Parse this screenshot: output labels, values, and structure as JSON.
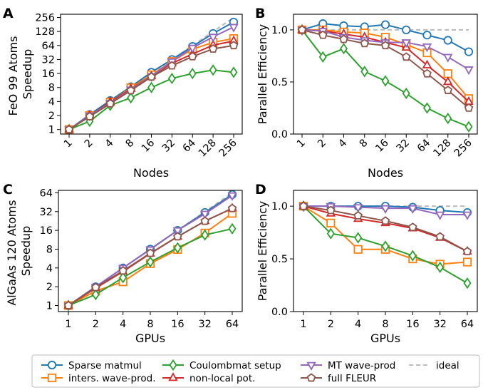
{
  "legend": {
    "entries": [
      {
        "key": "sparse",
        "label": "Sparse matmul"
      },
      {
        "key": "inters",
        "label": "inters. wave-prod."
      },
      {
        "key": "coul",
        "label": "Coulombmat setup"
      },
      {
        "key": "nonloc",
        "label": "non-local pot."
      },
      {
        "key": "mt",
        "label": "MT wave-prod"
      },
      {
        "key": "fleur",
        "label": "full FLEUR"
      },
      {
        "key": "ideal",
        "label": "ideal"
      }
    ]
  },
  "series_styles": {
    "sparse": {
      "color": "#1f77b4",
      "marker": "circle"
    },
    "inters": {
      "color": "#ff7f0e",
      "marker": "square"
    },
    "coul": {
      "color": "#2ca02c",
      "marker": "diamond"
    },
    "nonloc": {
      "color": "#d62728",
      "marker": "triangle-up"
    },
    "mt": {
      "color": "#9467bd",
      "marker": "triangle-down"
    },
    "fleur": {
      "color": "#8c564b",
      "marker": "pentagon"
    },
    "ideal": {
      "color": "#bbbbbb",
      "marker": "dashed-line"
    }
  },
  "chart_data": [
    {
      "panel": "A",
      "type": "line",
      "title": "",
      "xlabel": "Nodes",
      "ylabel_lines": [
        "FeO 99 Atoms",
        "Speedup"
      ],
      "xscale": "log2",
      "yscale": "log2",
      "categories": [
        "1",
        "2",
        "4",
        "8",
        "16",
        "32",
        "64",
        "128",
        "256"
      ],
      "x": [
        1,
        2,
        4,
        8,
        16,
        32,
        64,
        128,
        256
      ],
      "ylim": [
        0.8,
        300
      ],
      "yticks": [
        1,
        2,
        4,
        8,
        16,
        32,
        64,
        128,
        256
      ],
      "ytick_labels": [
        "1",
        "2",
        "4",
        "8",
        "16",
        "32",
        "64",
        "128",
        "256"
      ],
      "xtick_rotation": -45,
      "series": [
        {
          "key": "sparse",
          "name": "Sparse matmul",
          "values": [
            1,
            2.1,
            4.2,
            8.3,
            17,
            32,
            61,
            116,
            204
          ]
        },
        {
          "key": "inters",
          "name": "inters. wave-prod.",
          "values": [
            1,
            2,
            3.9,
            7.9,
            15,
            29,
            53,
            75,
            90
          ]
        },
        {
          "key": "coul",
          "name": "Coulombmat setup",
          "values": [
            1,
            1.5,
            3.3,
            4.8,
            8,
            12.5,
            16,
            19,
            17
          ]
        },
        {
          "key": "nonloc",
          "name": "non-local pot.",
          "values": [
            1,
            2,
            3.9,
            7.5,
            14,
            26.5,
            42,
            65,
            80
          ]
        },
        {
          "key": "mt",
          "name": "MT wave-prod",
          "values": [
            1,
            2,
            3.7,
            7.2,
            14,
            29,
            57,
            98,
            160
          ]
        },
        {
          "key": "fleur",
          "name": "full FLEUR",
          "values": [
            1,
            1.9,
            3.6,
            6.9,
            13.5,
            23.5,
            37,
            54,
            64
          ]
        },
        {
          "key": "ideal",
          "name": "ideal",
          "values": [
            1,
            2,
            4,
            8,
            16,
            32,
            64,
            128,
            256
          ]
        }
      ]
    },
    {
      "panel": "B",
      "type": "line",
      "title": "",
      "xlabel": "Nodes",
      "ylabel": "Parallel Efficiency",
      "xscale": "log2",
      "yscale": "linear",
      "categories": [
        "1",
        "2",
        "4",
        "8",
        "16",
        "32",
        "64",
        "128",
        "256"
      ],
      "x": [
        1,
        2,
        4,
        8,
        16,
        32,
        64,
        128,
        256
      ],
      "ylim": [
        0,
        1.15
      ],
      "yticks": [
        0,
        0.5,
        1
      ],
      "ytick_labels": [
        "0.0",
        "0.5",
        "1.0"
      ],
      "xtick_rotation": -45,
      "series": [
        {
          "key": "sparse",
          "name": "Sparse matmul",
          "values": [
            1,
            1.06,
            1.04,
            1.03,
            1.05,
            1.0,
            0.95,
            0.9,
            0.79
          ]
        },
        {
          "key": "inters",
          "name": "inters. wave-prod.",
          "values": [
            1,
            1.0,
            0.98,
            0.97,
            0.93,
            0.86,
            0.78,
            0.58,
            0.34
          ]
        },
        {
          "key": "coul",
          "name": "Coulombmat setup",
          "values": [
            1,
            0.74,
            0.82,
            0.6,
            0.51,
            0.39,
            0.25,
            0.15,
            0.07
          ]
        },
        {
          "key": "nonloc",
          "name": "non-local pot.",
          "values": [
            1,
            0.99,
            0.96,
            0.93,
            0.88,
            0.83,
            0.66,
            0.5,
            0.31
          ]
        },
        {
          "key": "mt",
          "name": "MT wave-prod",
          "values": [
            1,
            0.99,
            0.93,
            0.9,
            0.88,
            0.88,
            0.84,
            0.74,
            0.62
          ]
        },
        {
          "key": "fleur",
          "name": "full FLEUR",
          "values": [
            1,
            0.95,
            0.91,
            0.87,
            0.85,
            0.74,
            0.58,
            0.42,
            0.25
          ]
        },
        {
          "key": "ideal",
          "name": "ideal",
          "values": [
            1,
            1,
            1,
            1,
            1,
            1,
            1,
            1,
            1
          ]
        }
      ]
    },
    {
      "panel": "C",
      "type": "line",
      "title": "",
      "xlabel": "GPUs",
      "ylabel_lines": [
        "AlGaAs 120 Atoms",
        "Speedup"
      ],
      "xscale": "log2",
      "yscale": "log2",
      "categories": [
        "1",
        "2",
        "4",
        "8",
        "16",
        "32",
        "64"
      ],
      "x": [
        1,
        2,
        4,
        8,
        16,
        32,
        64
      ],
      "ylim": [
        0.8,
        70
      ],
      "yticks": [
        1,
        2,
        4,
        8,
        16,
        32,
        64
      ],
      "ytick_labels": [
        "1",
        "2",
        "4",
        "8",
        "16",
        "32",
        "64"
      ],
      "xtick_rotation": 0,
      "series": [
        {
          "key": "sparse",
          "name": "Sparse matmul",
          "values": [
            1,
            2,
            4,
            8,
            16,
            31,
            60
          ]
        },
        {
          "key": "inters",
          "name": "inters. wave-prod.",
          "values": [
            1,
            1.7,
            2.4,
            4.7,
            7.9,
            14.5,
            30
          ]
        },
        {
          "key": "coul",
          "name": "Coulombmat setup",
          "values": [
            1,
            1.5,
            2.8,
            5,
            8.4,
            13.5,
            17
          ]
        },
        {
          "key": "nonloc",
          "name": "non-local pot.",
          "values": [
            1,
            1.9,
            3.5,
            6.8,
            12.7,
            22.5,
            36
          ]
        },
        {
          "key": "mt",
          "name": "MT wave-prod",
          "values": [
            1,
            2,
            4,
            7.9,
            16,
            29.5,
            58
          ]
        },
        {
          "key": "fleur",
          "name": "full FLEUR",
          "values": [
            1,
            1.95,
            3.6,
            6.9,
            12.7,
            22.5,
            36
          ]
        },
        {
          "key": "ideal",
          "name": "ideal",
          "values": [
            1,
            2,
            4,
            8,
            16,
            32,
            64
          ]
        }
      ]
    },
    {
      "panel": "D",
      "type": "line",
      "title": "",
      "xlabel": "GPUs",
      "ylabel": "Parallel Efficiency",
      "xscale": "log2",
      "yscale": "linear",
      "categories": [
        "1",
        "2",
        "4",
        "8",
        "16",
        "32",
        "64"
      ],
      "x": [
        1,
        2,
        4,
        8,
        16,
        32,
        64
      ],
      "ylim": [
        0,
        1.15
      ],
      "yticks": [
        0,
        0.5,
        1
      ],
      "ytick_labels": [
        "0.0",
        "0.5",
        "1.0"
      ],
      "xtick_rotation": 0,
      "series": [
        {
          "key": "sparse",
          "name": "Sparse matmul",
          "values": [
            1,
            1,
            1,
            1,
            0.99,
            0.96,
            0.94
          ]
        },
        {
          "key": "inters",
          "name": "inters. wave-prod.",
          "values": [
            1,
            0.84,
            0.59,
            0.59,
            0.5,
            0.45,
            0.47
          ]
        },
        {
          "key": "coul",
          "name": "Coulombmat setup",
          "values": [
            1,
            0.74,
            0.7,
            0.62,
            0.53,
            0.42,
            0.27
          ]
        },
        {
          "key": "nonloc",
          "name": "non-local pot.",
          "values": [
            1,
            0.93,
            0.88,
            0.84,
            0.79,
            0.7,
            0.57
          ]
        },
        {
          "key": "mt",
          "name": "MT wave-prod",
          "values": [
            1,
            1,
            0.99,
            0.98,
            0.98,
            0.92,
            0.92
          ]
        },
        {
          "key": "fleur",
          "name": "full FLEUR",
          "values": [
            1,
            0.96,
            0.91,
            0.86,
            0.8,
            0.71,
            0.57
          ]
        },
        {
          "key": "ideal",
          "name": "ideal",
          "values": [
            1,
            1,
            1,
            1,
            1,
            1,
            1
          ]
        }
      ]
    }
  ]
}
